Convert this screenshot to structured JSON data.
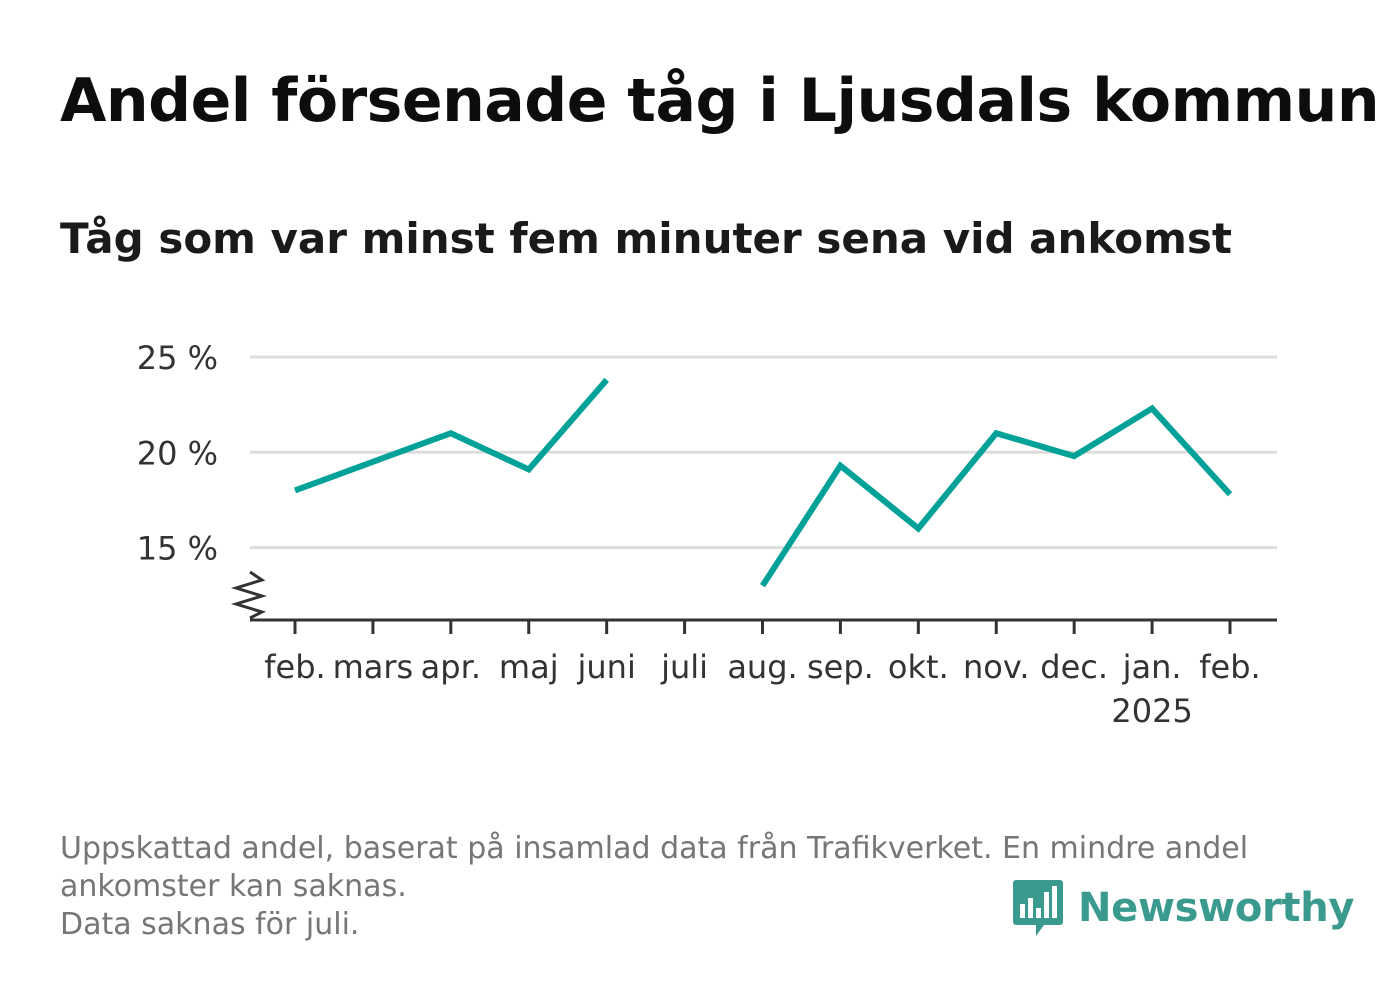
{
  "chart_data": {
    "type": "line",
    "title": "Andel försenade tåg i Ljusdals kommun",
    "subtitle": "Tåg som var minst fem minuter sena vid ankomst",
    "categories": [
      "feb.",
      "mars",
      "apr.",
      "maj",
      "juni",
      "juli",
      "aug.",
      "sep.",
      "okt.",
      "nov.",
      "dec.",
      "jan.",
      "feb."
    ],
    "year_label": {
      "text": "2025",
      "category_index": 11
    },
    "series": [
      {
        "values": [
          18.0,
          19.5,
          21.0,
          19.1,
          23.8,
          null,
          13.0,
          19.3,
          16.0,
          21.0,
          19.8,
          22.3,
          17.8
        ],
        "color": "#00a198"
      }
    ],
    "y_ticks": [
      15,
      20,
      25
    ],
    "y_tick_labels": [
      "15 %",
      "20 %",
      "25 %"
    ],
    "ylim": [
      11.2,
      25
    ],
    "y_axis_break": true,
    "grid": true,
    "gridline_color": "#dddddd",
    "axis_color": "#333333"
  },
  "footnote": {
    "line1": "Uppskattad andel, baserat på insamlad data från Trafikverket. En mindre andel",
    "line2": "ankomster kan saknas.",
    "line3": "Data saknas för juli."
  },
  "brand": {
    "name": "Newsworthy",
    "icon": "newsworthy-bar-chart-icon",
    "color": "#3a9a8e"
  }
}
